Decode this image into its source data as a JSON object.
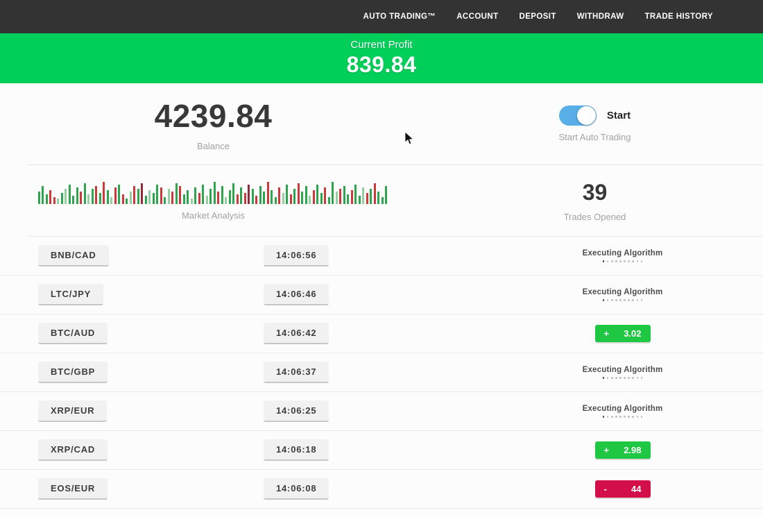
{
  "nav": {
    "items": [
      {
        "label": "AUTO TRADING™"
      },
      {
        "label": "ACCOUNT"
      },
      {
        "label": "DEPOSIT"
      },
      {
        "label": "WITHDRAW"
      },
      {
        "label": "TRADE HISTORY"
      }
    ]
  },
  "profit_banner": {
    "label": "Current Profit",
    "value": "839.84",
    "bg_color": "#00d05a"
  },
  "summary": {
    "balance": {
      "value": "4239.84",
      "label": "Balance"
    },
    "auto_trading": {
      "toggle_label": "Start",
      "caption": "Start Auto Trading",
      "toggle_on": true,
      "toggle_color": "#58aee6"
    },
    "market_analysis": {
      "label": "Market Analysis"
    },
    "trades_opened": {
      "value": "39",
      "label": "Trades Opened"
    }
  },
  "chart_data": {
    "type": "bar",
    "title": "Market Analysis",
    "xlabel": "",
    "ylabel": "",
    "legend": false,
    "description": "Mini candlestick-style bar strip of green (up) and red (down) ticks, heights in px",
    "colors": {
      "g": "#2ea44d",
      "r": "#cb3a3a",
      "lg": "#95cfa0",
      "dr": "#8f2b38"
    },
    "bars": [
      [
        18,
        "g"
      ],
      [
        26,
        "g"
      ],
      [
        14,
        "g"
      ],
      [
        20,
        "r"
      ],
      [
        10,
        "r"
      ],
      [
        8,
        "lg"
      ],
      [
        16,
        "g"
      ],
      [
        22,
        "lg"
      ],
      [
        28,
        "g"
      ],
      [
        12,
        "g"
      ],
      [
        24,
        "g"
      ],
      [
        18,
        "r"
      ],
      [
        30,
        "g"
      ],
      [
        14,
        "lg"
      ],
      [
        22,
        "g"
      ],
      [
        26,
        "r"
      ],
      [
        16,
        "g"
      ],
      [
        32,
        "r"
      ],
      [
        20,
        "g"
      ],
      [
        10,
        "lg"
      ],
      [
        24,
        "r"
      ],
      [
        28,
        "g"
      ],
      [
        14,
        "r"
      ],
      [
        8,
        "g"
      ],
      [
        18,
        "lg"
      ],
      [
        26,
        "r"
      ],
      [
        22,
        "g"
      ],
      [
        30,
        "dr"
      ],
      [
        12,
        "g"
      ],
      [
        20,
        "lg"
      ],
      [
        16,
        "g"
      ],
      [
        28,
        "g"
      ],
      [
        24,
        "r"
      ],
      [
        10,
        "g"
      ],
      [
        22,
        "lg"
      ],
      [
        18,
        "r"
      ],
      [
        30,
        "g"
      ],
      [
        26,
        "r"
      ],
      [
        14,
        "g"
      ],
      [
        20,
        "g"
      ],
      [
        8,
        "lg"
      ],
      [
        24,
        "g"
      ],
      [
        16,
        "r"
      ],
      [
        28,
        "g"
      ],
      [
        12,
        "lg"
      ],
      [
        22,
        "g"
      ],
      [
        32,
        "g"
      ],
      [
        18,
        "r"
      ],
      [
        26,
        "g"
      ],
      [
        10,
        "lg"
      ],
      [
        20,
        "g"
      ],
      [
        30,
        "g"
      ],
      [
        14,
        "r"
      ],
      [
        24,
        "g"
      ],
      [
        16,
        "r"
      ],
      [
        28,
        "dr"
      ],
      [
        22,
        "g"
      ],
      [
        12,
        "r"
      ],
      [
        26,
        "g"
      ],
      [
        18,
        "g"
      ],
      [
        32,
        "r"
      ],
      [
        20,
        "g"
      ],
      [
        10,
        "g"
      ],
      [
        24,
        "r"
      ],
      [
        16,
        "lg"
      ],
      [
        28,
        "g"
      ],
      [
        14,
        "r"
      ],
      [
        22,
        "g"
      ],
      [
        30,
        "r"
      ],
      [
        18,
        "g"
      ],
      [
        26,
        "g"
      ],
      [
        12,
        "lg"
      ],
      [
        20,
        "r"
      ],
      [
        28,
        "g"
      ],
      [
        16,
        "g"
      ],
      [
        24,
        "r"
      ],
      [
        10,
        "g"
      ],
      [
        32,
        "g"
      ],
      [
        18,
        "lg"
      ],
      [
        22,
        "r"
      ],
      [
        26,
        "g"
      ],
      [
        14,
        "g"
      ],
      [
        20,
        "r"
      ],
      [
        28,
        "g"
      ],
      [
        12,
        "g"
      ],
      [
        24,
        "lg"
      ],
      [
        16,
        "r"
      ],
      [
        22,
        "g"
      ],
      [
        30,
        "r"
      ],
      [
        18,
        "g"
      ],
      [
        10,
        "g"
      ],
      [
        26,
        "g"
      ]
    ]
  },
  "trades": {
    "executing_label": "Executing Algorithm",
    "dots_count": 10,
    "badge_colors": {
      "profit": "#1fc742",
      "loss": "#d30f4a"
    },
    "rows": [
      {
        "pair": "BNB/CAD",
        "time": "14:06:56",
        "status": {
          "type": "executing"
        }
      },
      {
        "pair": "LTC/JPY",
        "time": "14:06:46",
        "status": {
          "type": "executing"
        }
      },
      {
        "pair": "BTC/AUD",
        "time": "14:06:42",
        "status": {
          "type": "profit",
          "sign": "+",
          "value": "3.02"
        }
      },
      {
        "pair": "BTC/GBP",
        "time": "14:06:37",
        "status": {
          "type": "executing"
        }
      },
      {
        "pair": "XRP/EUR",
        "time": "14:06:25",
        "status": {
          "type": "executing"
        }
      },
      {
        "pair": "XRP/CAD",
        "time": "14:06:18",
        "status": {
          "type": "profit",
          "sign": "+",
          "value": "2.98"
        }
      },
      {
        "pair": "EOS/EUR",
        "time": "14:06:08",
        "status": {
          "type": "loss",
          "sign": "-",
          "value": "44"
        }
      }
    ]
  }
}
